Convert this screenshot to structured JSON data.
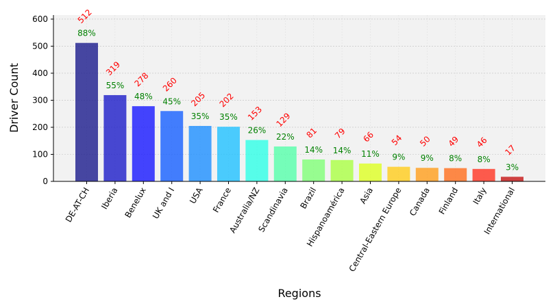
{
  "chart_data": {
    "type": "bar",
    "title": "",
    "xlabel": "Regions",
    "ylabel": "Driver Count",
    "ylim": [
      0,
      615
    ],
    "yticks": [
      0,
      100,
      200,
      300,
      400,
      500,
      600
    ],
    "grid": true,
    "categories": [
      "DE-AT-CH",
      "Iberia",
      "Benelux",
      "UK and I",
      "USA",
      "France",
      "Australia/NZ",
      "Scandinavia",
      "Brazil",
      "Hispanoamérica",
      "Asia",
      "Central-Eastern Europe",
      "Canada",
      "Finland",
      "Italy",
      "International"
    ],
    "values": [
      512,
      319,
      278,
      260,
      205,
      202,
      153,
      129,
      81,
      79,
      66,
      54,
      50,
      49,
      46,
      17
    ],
    "value_labels": [
      "512",
      "319",
      "278",
      "260",
      "205",
      "202",
      "153",
      "129",
      "81",
      "79",
      "66",
      "54",
      "50",
      "49",
      "46",
      "17"
    ],
    "percent_labels": [
      "88%",
      "55%",
      "48%",
      "45%",
      "35%",
      "35%",
      "26%",
      "22%",
      "14%",
      "14%",
      "11%",
      "9%",
      "9%",
      "8%",
      "8%",
      "3%"
    ],
    "colors": [
      "#1a1a8c",
      "#1c1cc8",
      "#1616ff",
      "#155fff",
      "#1d8eff",
      "#1fc0ff",
      "#2effe6",
      "#55ffaa",
      "#80ff77",
      "#aaff44",
      "#ddff22",
      "#ffcc1a",
      "#ff9d1a",
      "#ff6d1a",
      "#ff3322",
      "#c41414"
    ],
    "value_label_color": "#ff0000",
    "percent_label_color": "#008000",
    "plot_background": "#f2f2f2"
  }
}
